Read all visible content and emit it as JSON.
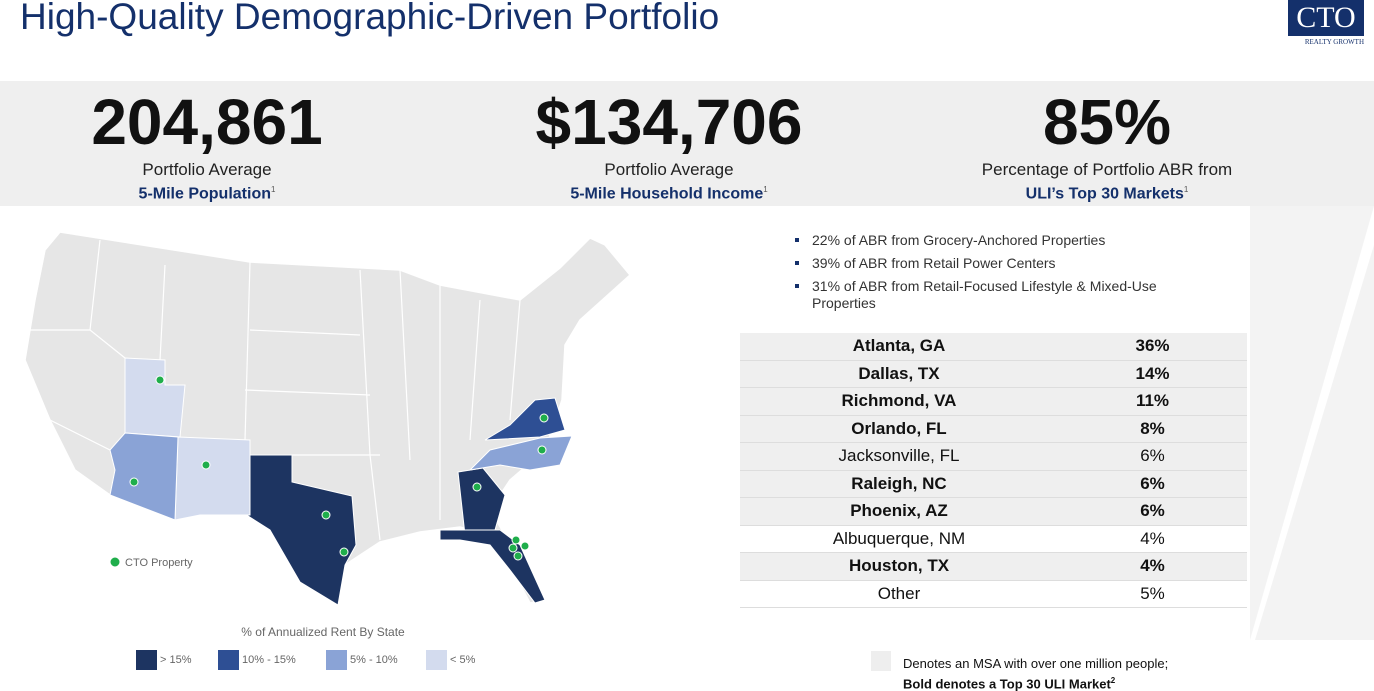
{
  "header": {
    "title": "High-Quality Demographic-Driven Portfolio",
    "logo": {
      "name": "CTO",
      "tagline": "REALTY GROWTH"
    }
  },
  "stats": [
    {
      "value": "204,861",
      "caption": "Portfolio Average",
      "metric": "5-Mile Population",
      "note": "1"
    },
    {
      "value": "$134,706",
      "caption": "Portfolio Average",
      "metric": "5-Mile Household Income",
      "note": "1"
    },
    {
      "value": "85%",
      "caption": "Percentage of Portfolio ABR from",
      "metric": "ULI’s Top 30 Markets",
      "note": "1"
    }
  ],
  "bullets": [
    "22% of ABR from Grocery-Anchored Properties",
    "39% of ABR from Retail Power Centers",
    "31% of ABR from Retail-Focused Lifestyle & Mixed-Use Properties"
  ],
  "table": {
    "rows": [
      {
        "market": "Atlanta, GA",
        "share": "36%",
        "bold": true,
        "shaded": true
      },
      {
        "market": "Dallas, TX",
        "share": "14%",
        "bold": true,
        "shaded": true
      },
      {
        "market": "Richmond, VA",
        "share": "11%",
        "bold": true,
        "shaded": true
      },
      {
        "market": "Orlando, FL",
        "share": "8%",
        "bold": true,
        "shaded": true
      },
      {
        "market": "Jacksonville, FL",
        "share": "6%",
        "bold": false,
        "shaded": true
      },
      {
        "market": "Raleigh, NC",
        "share": "6%",
        "bold": true,
        "shaded": true
      },
      {
        "market": "Phoenix, AZ",
        "share": "6%",
        "bold": true,
        "shaded": true
      },
      {
        "market": "Albuquerque, NM",
        "share": "4%",
        "bold": false,
        "shaded": false
      },
      {
        "market": "Houston, TX",
        "share": "4%",
        "bold": true,
        "shaded": true
      },
      {
        "market": "Other",
        "share": "5%",
        "bold": false,
        "shaded": false
      }
    ]
  },
  "map": {
    "property_label": "CTO Property",
    "legend_title": "% of Annualized Rent By State",
    "legend": [
      {
        "label": "> 15%",
        "color": "#1d3461"
      },
      {
        "label": "10% - 15%",
        "color": "#2e4f94"
      },
      {
        "label": "5% - 10%",
        "color": "#8aa3d6"
      },
      {
        "label": "< 5%",
        "color": "#d3dbee"
      }
    ]
  },
  "footnote": {
    "line1": "Denotes an MSA with over one million people;",
    "line2": "Bold denotes a Top 30 ULI Market",
    "note": "2"
  }
}
